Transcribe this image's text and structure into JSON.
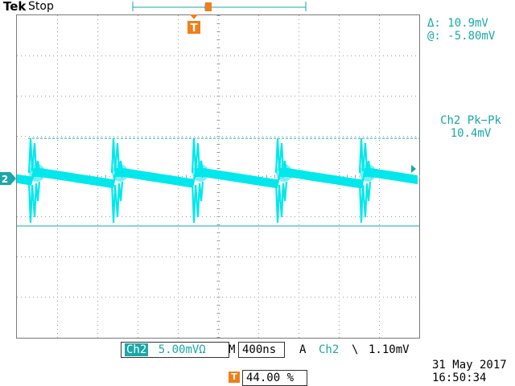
{
  "header": {
    "brand": "Tek",
    "acq_state": "Stop"
  },
  "cursor_readout": {
    "delta": "Δ:  10.9mV",
    "at": "@: -5.80mV"
  },
  "measurement": {
    "label": "Ch2 Pk−Pk",
    "value": "10.4mV"
  },
  "channel_marker": "2",
  "trigger_marker": "T",
  "bottom_bar": {
    "channel": "Ch2",
    "scale": "5.00mVΩ",
    "m_label": "M",
    "timebase": "400ns",
    "a_label": "A",
    "trig_source": "Ch2",
    "trig_slope": "\\",
    "trig_level": "1.10mV",
    "trig_pos_icon": "T",
    "trig_pos": "44.00 %"
  },
  "datetime": {
    "date": "31 May 2017",
    "time": "16:50:34"
  },
  "colors": {
    "trace": "#00e8ec",
    "cursor": "#1aa7a7",
    "trigger": "#f07f1a",
    "grid": "#9a9a9a"
  }
}
